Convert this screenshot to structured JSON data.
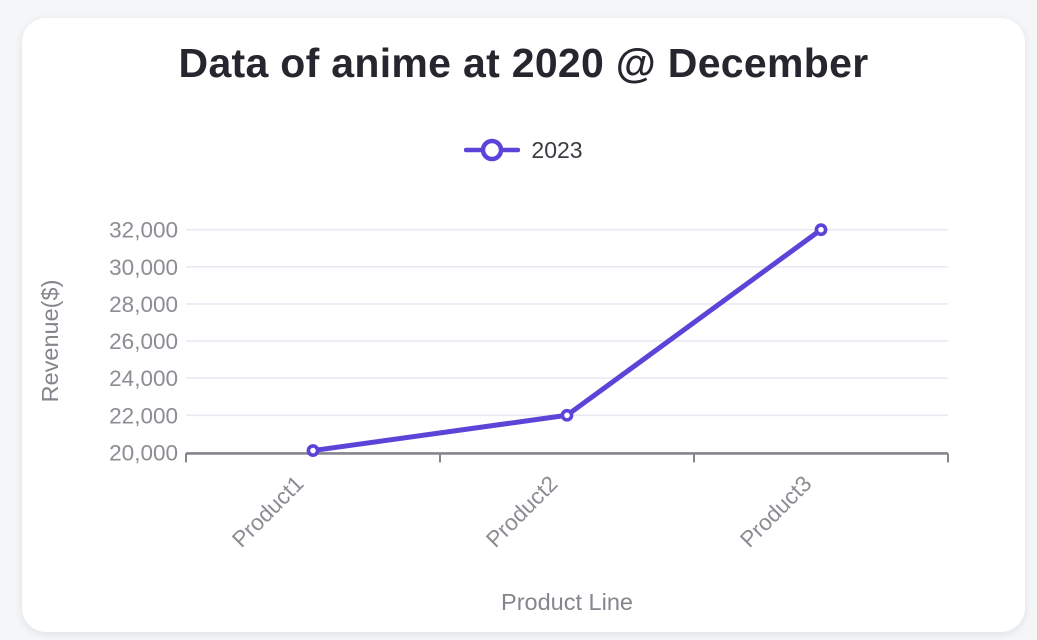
{
  "chart_data": {
    "type": "line",
    "title": "Data of anime at 2020 @ December",
    "categories": [
      "Product1",
      "Product2",
      "Product3"
    ],
    "series": [
      {
        "name": "2023",
        "color": "#5b45d8",
        "values": [
          20100,
          22000,
          32000
        ]
      }
    ],
    "xlabel": "Product Line",
    "ylabel": "Revenue($)",
    "ylim": [
      20000,
      32000
    ],
    "ytick_step": 2000,
    "ytick_labels": [
      "20,000",
      "22,000",
      "24,000",
      "26,000",
      "28,000",
      "30,000",
      "32,000"
    ],
    "grid": true,
    "legend_position": "top",
    "x_label_rotation_deg": -45
  },
  "colors": {
    "accent": "#5b45d8",
    "title_text": "#26262e",
    "legend_text": "#3b3b42",
    "tick_label": "#8c8c93",
    "axis_name": "#85858d",
    "axis_line": "#85858d",
    "gridline": "#e8eaf4",
    "card_bg": "#ffffff",
    "page_bg": "#f4f6f8",
    "marker_fill": "#ffffff"
  }
}
